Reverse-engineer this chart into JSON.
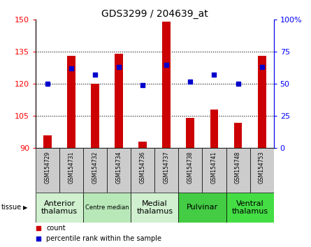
{
  "title": "GDS3299 / 204639_at",
  "samples": [
    "GSM154729",
    "GSM154731",
    "GSM154732",
    "GSM154734",
    "GSM154736",
    "GSM154737",
    "GSM154738",
    "GSM154741",
    "GSM154748",
    "GSM154753"
  ],
  "counts": [
    96,
    133,
    120,
    134,
    93,
    149,
    104,
    108,
    102,
    133
  ],
  "percentile_ranks": [
    50,
    62,
    57,
    63,
    49,
    65,
    52,
    57,
    50,
    63
  ],
  "ylim_left": [
    90,
    150
  ],
  "ylim_right": [
    0,
    100
  ],
  "yticks_left": [
    90,
    105,
    120,
    135,
    150
  ],
  "yticks_right": [
    0,
    25,
    50,
    75,
    100
  ],
  "bar_color": "#cc0000",
  "dot_color": "#0000cc",
  "bar_bottom": 90,
  "tissue_groups": [
    {
      "label": "Anterior\nthalamus",
      "start": 0,
      "end": 2,
      "color": "#d0f0d0",
      "fontsize": 8
    },
    {
      "label": "Centre median",
      "start": 2,
      "end": 4,
      "color": "#b8e8b8",
      "fontsize": 6
    },
    {
      "label": "Medial\nthalamus",
      "start": 4,
      "end": 6,
      "color": "#d0f0d0",
      "fontsize": 8
    },
    {
      "label": "Pulvinar",
      "start": 6,
      "end": 8,
      "color": "#44cc44",
      "fontsize": 8
    },
    {
      "label": "Ventral\nthalamus",
      "start": 8,
      "end": 10,
      "color": "#44dd44",
      "fontsize": 8
    }
  ],
  "grid_yticks": [
    105,
    120,
    135
  ],
  "legend_count_label": "count",
  "legend_pct_label": "percentile rank within the sample",
  "tissue_label": "tissue",
  "sample_bg_color": "#cccccc",
  "right_tick_labels": [
    "0",
    "25",
    "50",
    "75",
    "100%"
  ]
}
